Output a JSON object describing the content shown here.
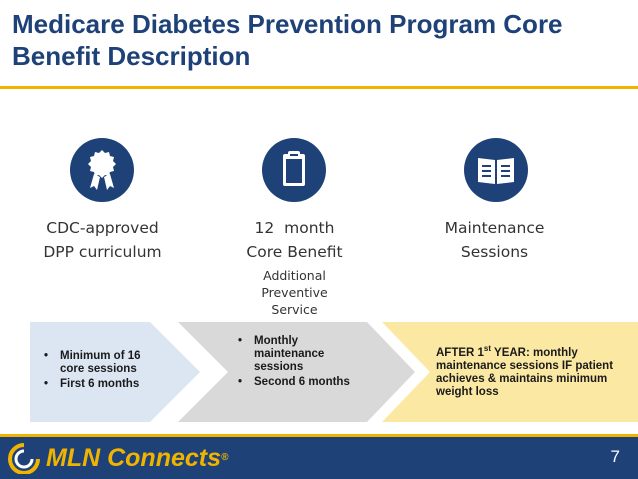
{
  "slide": {
    "title": "Medicare Diabetes Prevention Program Core Benefit Description",
    "page_number": "7"
  },
  "columns": [
    {
      "icon": "award-ribbon-icon",
      "label_line1": "CDC-approved",
      "label_line2": "DPP curriculum"
    },
    {
      "icon": "clipboard-icon",
      "label_line1": "12  month",
      "label_line2": "Core Benefit",
      "sub_line1": "Additional",
      "sub_line2": "Preventive",
      "sub_line3": "Service"
    },
    {
      "icon": "open-book-icon",
      "label_line1": "Maintenance",
      "label_line2": "Sessions"
    }
  ],
  "phases": [
    {
      "bullets": [
        "Minimum of 16 core sessions",
        "First 6 months"
      ],
      "fill": "#dce6f2"
    },
    {
      "bullets": [
        "Monthly maintenance sessions",
        "Second 6 months"
      ],
      "fill": "#d9d9d9"
    },
    {
      "text_prefix": "AFTER 1",
      "text_sup": "st",
      "text_rest": " YEAR:  monthly maintenance sessions IF patient achieves & maintains minimum weight loss",
      "fill": "#fbe9a3"
    }
  ],
  "footer": {
    "logo_text": "MLN Connects",
    "logo_mark": "®"
  },
  "colors": {
    "navy": "#1e4278",
    "gold": "#f0b400"
  }
}
